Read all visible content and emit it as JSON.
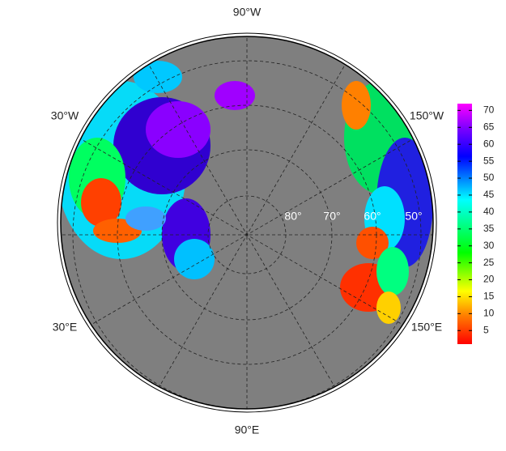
{
  "map": {
    "lon_labels": [
      "90°W",
      "30°W",
      "150°W",
      "30°E",
      "150°E",
      "90°E"
    ],
    "lat_labels": [
      "80°",
      "70°",
      "60°",
      "50°"
    ],
    "colorbar": {
      "lim": [
        1,
        72
      ],
      "ticks": [
        5,
        10,
        15,
        20,
        25,
        30,
        35,
        40,
        45,
        50,
        55,
        60,
        65,
        70
      ]
    }
  }
}
